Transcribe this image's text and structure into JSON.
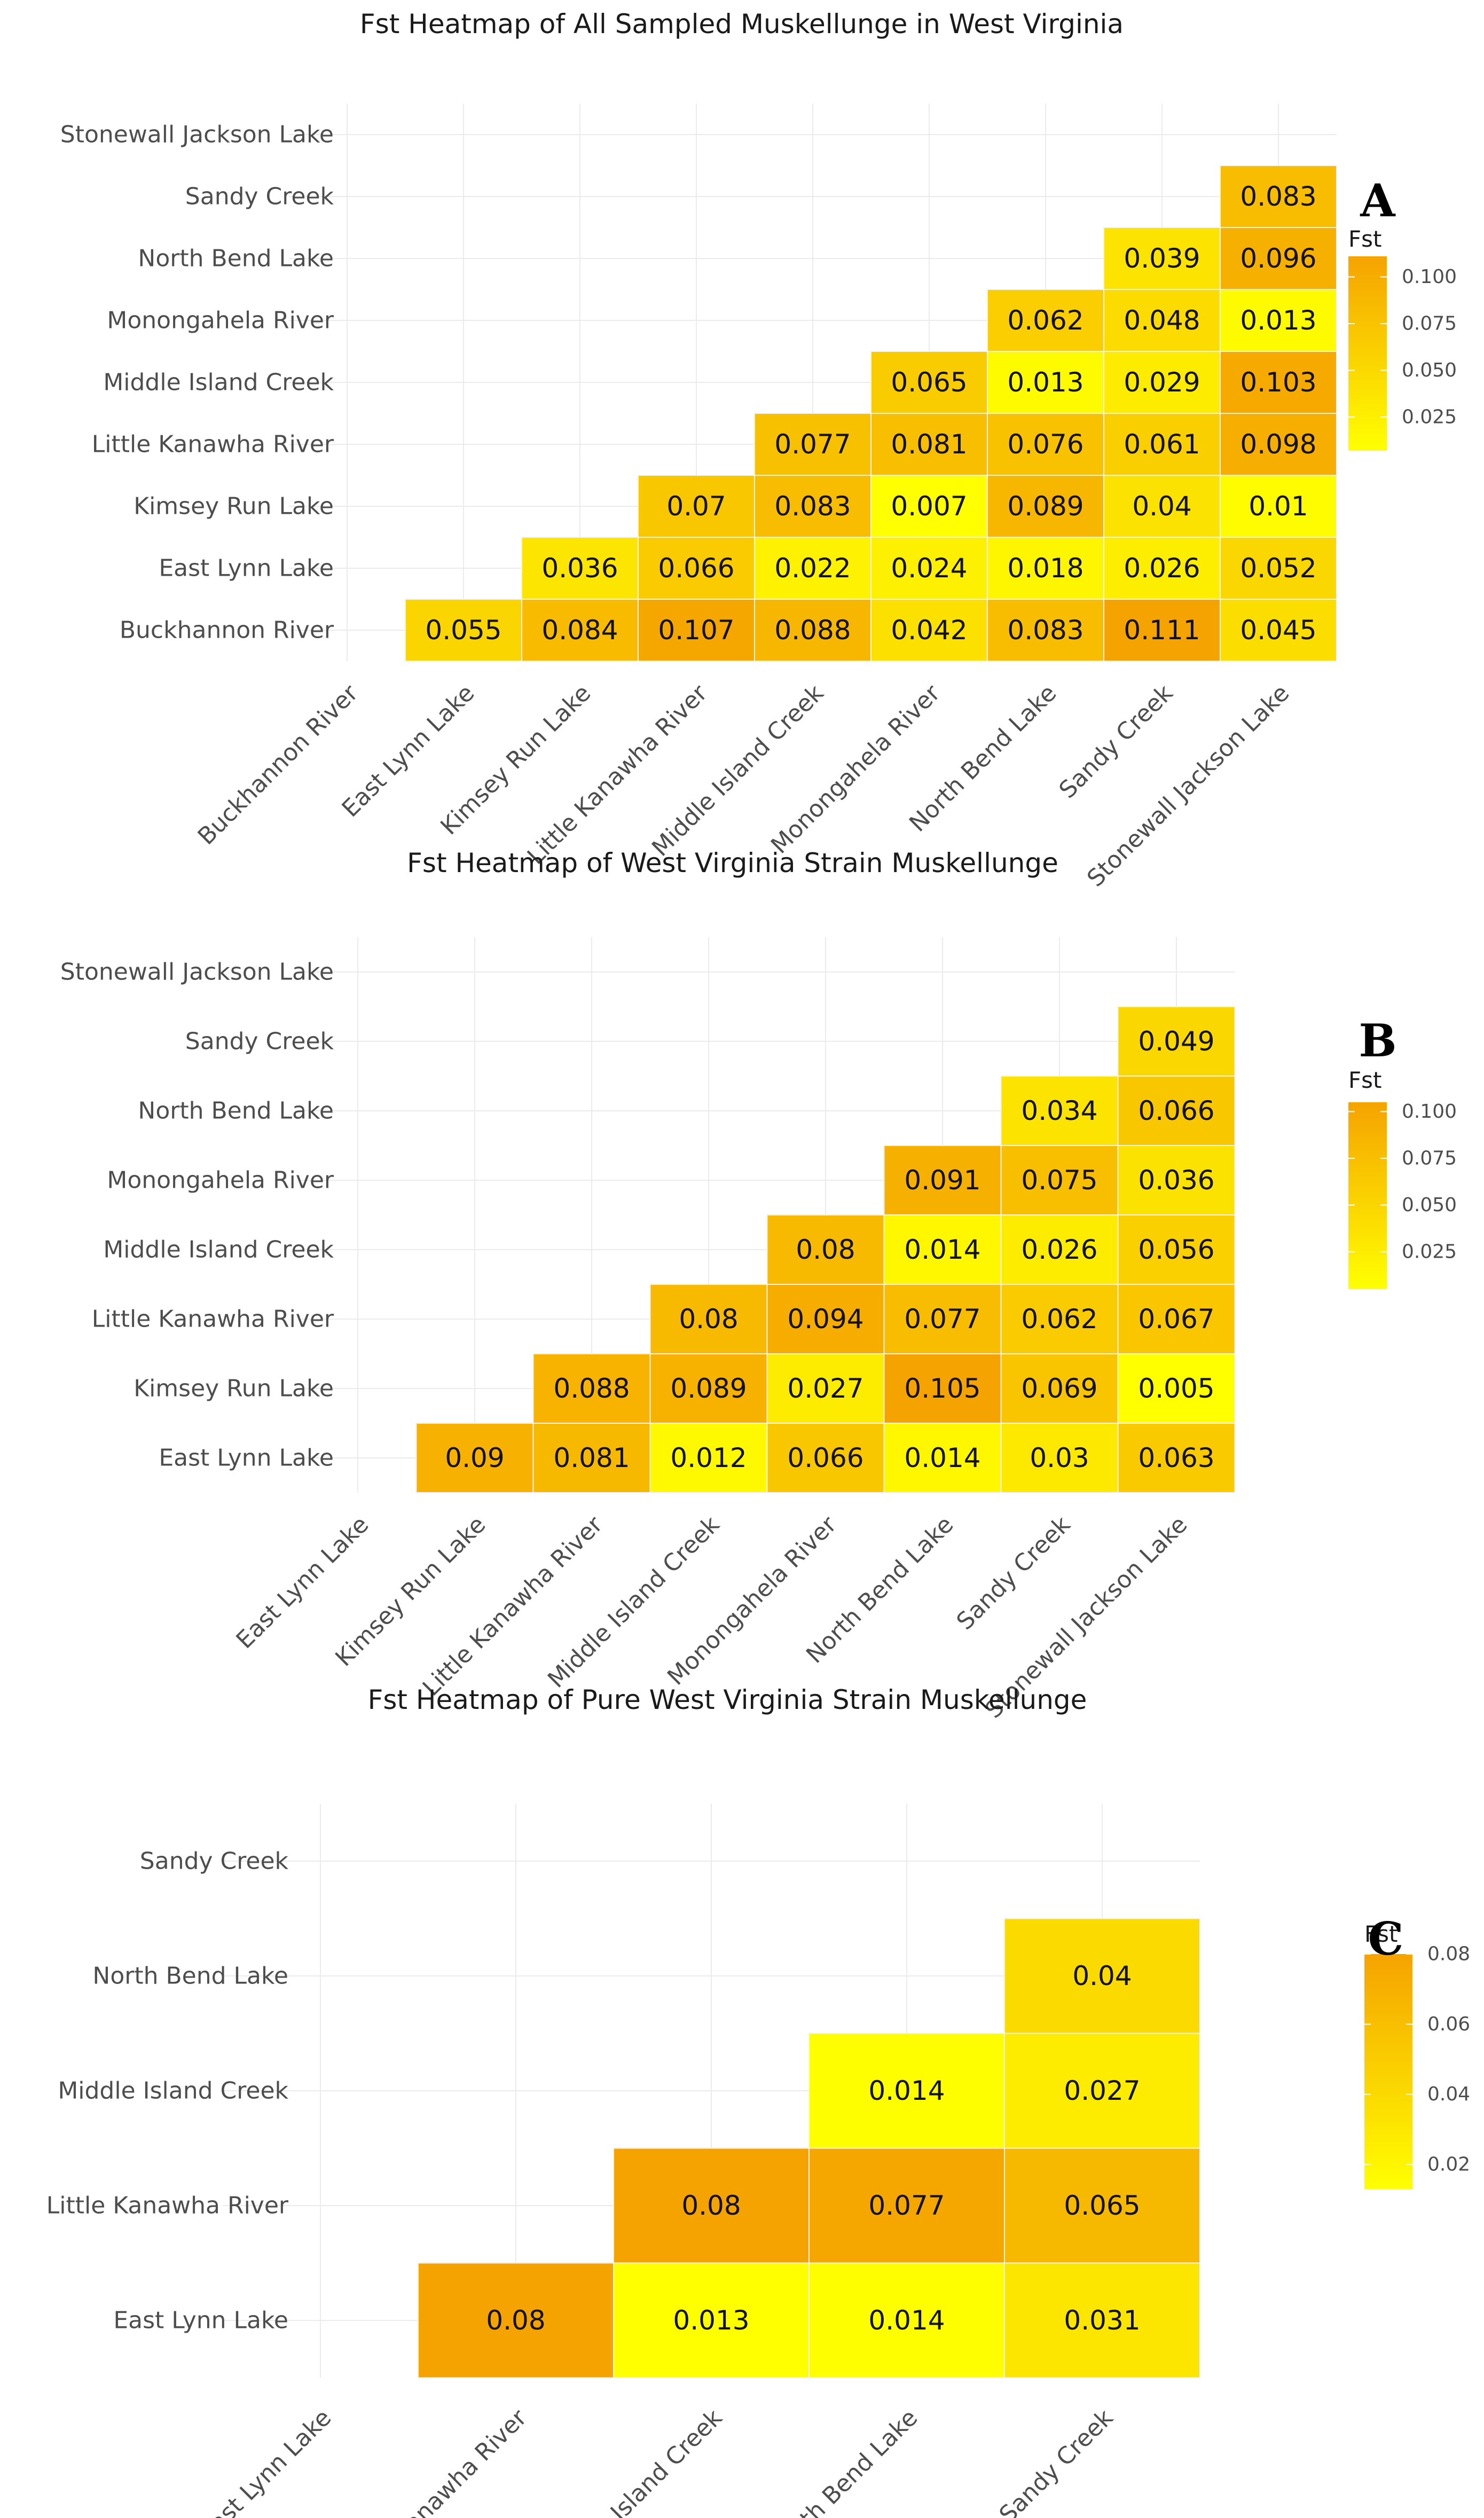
{
  "colors": {
    "low": "#ffff00",
    "high": "#f5a300",
    "grid": "#ebebeb",
    "cell_border": "#f2f2f2"
  },
  "chart_data": [
    {
      "type": "heatmap",
      "panel": "A",
      "title": "Fst Heatmap of All Sampled Muskellunge in West Virginia",
      "legend_title": "Fst",
      "legend_ticks": [
        "0.100",
        "0.075",
        "0.050",
        "0.025"
      ],
      "legend_tick_values": [
        0.1,
        0.075,
        0.05,
        0.025
      ],
      "value_range": [
        0.007,
        0.111
      ],
      "x_categories": [
        "Buckhannon River",
        "East Lynn Lake",
        "Kimsey Run Lake",
        "Little Kanawha River",
        "Middle Island Creek",
        "Monongahela River",
        "North Bend Lake",
        "Sandy Creek",
        "Stonewall Jackson Lake"
      ],
      "y_categories": [
        "Buckhannon River",
        "East Lynn Lake",
        "Kimsey Run Lake",
        "Little Kanawha River",
        "Middle Island Creek",
        "Monongahela River",
        "North Bend Lake",
        "Sandy Creek",
        "Stonewall Jackson Lake"
      ],
      "cells": [
        {
          "x": 1,
          "y": 0,
          "label": "0.055",
          "value": 0.055
        },
        {
          "x": 2,
          "y": 0,
          "label": "0.084",
          "value": 0.084
        },
        {
          "x": 3,
          "y": 0,
          "label": "0.107",
          "value": 0.107
        },
        {
          "x": 4,
          "y": 0,
          "label": "0.088",
          "value": 0.088
        },
        {
          "x": 5,
          "y": 0,
          "label": "0.042",
          "value": 0.042
        },
        {
          "x": 6,
          "y": 0,
          "label": "0.083",
          "value": 0.083
        },
        {
          "x": 7,
          "y": 0,
          "label": "0.111",
          "value": 0.111
        },
        {
          "x": 8,
          "y": 0,
          "label": "0.045",
          "value": 0.045
        },
        {
          "x": 2,
          "y": 1,
          "label": "0.036",
          "value": 0.036
        },
        {
          "x": 3,
          "y": 1,
          "label": "0.066",
          "value": 0.066
        },
        {
          "x": 4,
          "y": 1,
          "label": "0.022",
          "value": 0.022
        },
        {
          "x": 5,
          "y": 1,
          "label": "0.024",
          "value": 0.024
        },
        {
          "x": 6,
          "y": 1,
          "label": "0.018",
          "value": 0.018
        },
        {
          "x": 7,
          "y": 1,
          "label": "0.026",
          "value": 0.026
        },
        {
          "x": 8,
          "y": 1,
          "label": "0.052",
          "value": 0.052
        },
        {
          "x": 3,
          "y": 2,
          "label": "0.07",
          "value": 0.07
        },
        {
          "x": 4,
          "y": 2,
          "label": "0.083",
          "value": 0.083
        },
        {
          "x": 5,
          "y": 2,
          "label": "0.007",
          "value": 0.007
        },
        {
          "x": 6,
          "y": 2,
          "label": "0.089",
          "value": 0.089
        },
        {
          "x": 7,
          "y": 2,
          "label": "0.04",
          "value": 0.04
        },
        {
          "x": 8,
          "y": 2,
          "label": "0.01",
          "value": 0.01
        },
        {
          "x": 4,
          "y": 3,
          "label": "0.077",
          "value": 0.077
        },
        {
          "x": 5,
          "y": 3,
          "label": "0.081",
          "value": 0.081
        },
        {
          "x": 6,
          "y": 3,
          "label": "0.076",
          "value": 0.076
        },
        {
          "x": 7,
          "y": 3,
          "label": "0.061",
          "value": 0.061
        },
        {
          "x": 8,
          "y": 3,
          "label": "0.098",
          "value": 0.098
        },
        {
          "x": 5,
          "y": 4,
          "label": "0.065",
          "value": 0.065
        },
        {
          "x": 6,
          "y": 4,
          "label": "0.013",
          "value": 0.013
        },
        {
          "x": 7,
          "y": 4,
          "label": "0.029",
          "value": 0.029
        },
        {
          "x": 8,
          "y": 4,
          "label": "0.103",
          "value": 0.103
        },
        {
          "x": 6,
          "y": 5,
          "label": "0.062",
          "value": 0.062
        },
        {
          "x": 7,
          "y": 5,
          "label": "0.048",
          "value": 0.048
        },
        {
          "x": 8,
          "y": 5,
          "label": "0.013",
          "value": 0.013
        },
        {
          "x": 7,
          "y": 6,
          "label": "0.039",
          "value": 0.039
        },
        {
          "x": 8,
          "y": 6,
          "label": "0.096",
          "value": 0.096
        },
        {
          "x": 8,
          "y": 7,
          "label": "0.083",
          "value": 0.083
        }
      ]
    },
    {
      "type": "heatmap",
      "panel": "B",
      "title": "Fst Heatmap of West Virginia Strain Muskellunge",
      "legend_title": "Fst",
      "legend_ticks": [
        "0.100",
        "0.075",
        "0.050",
        "0.025"
      ],
      "legend_tick_values": [
        0.1,
        0.075,
        0.05,
        0.025
      ],
      "value_range": [
        0.005,
        0.105
      ],
      "x_categories": [
        "East Lynn Lake",
        "Kimsey Run Lake",
        "Little Kanawha River",
        "Middle Island Creek",
        "Monongahela River",
        "North Bend Lake",
        "Sandy Creek",
        "Stonewall Jackson Lake"
      ],
      "y_categories": [
        "East Lynn Lake",
        "Kimsey Run Lake",
        "Little Kanawha River",
        "Middle Island Creek",
        "Monongahela River",
        "North Bend Lake",
        "Sandy Creek",
        "Stonewall Jackson Lake"
      ],
      "cells": [
        {
          "x": 1,
          "y": 0,
          "label": "0.09",
          "value": 0.09
        },
        {
          "x": 2,
          "y": 0,
          "label": "0.081",
          "value": 0.081
        },
        {
          "x": 3,
          "y": 0,
          "label": "0.012",
          "value": 0.012
        },
        {
          "x": 4,
          "y": 0,
          "label": "0.066",
          "value": 0.066
        },
        {
          "x": 5,
          "y": 0,
          "label": "0.014",
          "value": 0.014
        },
        {
          "x": 6,
          "y": 0,
          "label": "0.03",
          "value": 0.03
        },
        {
          "x": 7,
          "y": 0,
          "label": "0.063",
          "value": 0.063
        },
        {
          "x": 2,
          "y": 1,
          "label": "0.088",
          "value": 0.088
        },
        {
          "x": 3,
          "y": 1,
          "label": "0.089",
          "value": 0.089
        },
        {
          "x": 4,
          "y": 1,
          "label": "0.027",
          "value": 0.027
        },
        {
          "x": 5,
          "y": 1,
          "label": "0.105",
          "value": 0.105
        },
        {
          "x": 6,
          "y": 1,
          "label": "0.069",
          "value": 0.069
        },
        {
          "x": 7,
          "y": 1,
          "label": "0.005",
          "value": 0.005
        },
        {
          "x": 3,
          "y": 2,
          "label": "0.08",
          "value": 0.08
        },
        {
          "x": 4,
          "y": 2,
          "label": "0.094",
          "value": 0.094
        },
        {
          "x": 5,
          "y": 2,
          "label": "0.077",
          "value": 0.077
        },
        {
          "x": 6,
          "y": 2,
          "label": "0.062",
          "value": 0.062
        },
        {
          "x": 7,
          "y": 2,
          "label": "0.067",
          "value": 0.067
        },
        {
          "x": 4,
          "y": 3,
          "label": "0.08",
          "value": 0.08
        },
        {
          "x": 5,
          "y": 3,
          "label": "0.014",
          "value": 0.014
        },
        {
          "x": 6,
          "y": 3,
          "label": "0.026",
          "value": 0.026
        },
        {
          "x": 7,
          "y": 3,
          "label": "0.056",
          "value": 0.056
        },
        {
          "x": 5,
          "y": 4,
          "label": "0.091",
          "value": 0.091
        },
        {
          "x": 6,
          "y": 4,
          "label": "0.075",
          "value": 0.075
        },
        {
          "x": 7,
          "y": 4,
          "label": "0.036",
          "value": 0.036
        },
        {
          "x": 6,
          "y": 5,
          "label": "0.034",
          "value": 0.034
        },
        {
          "x": 7,
          "y": 5,
          "label": "0.066",
          "value": 0.066
        },
        {
          "x": 7,
          "y": 6,
          "label": "0.049",
          "value": 0.049
        }
      ]
    },
    {
      "type": "heatmap",
      "panel": "C",
      "title": "Fst Heatmap of Pure West Virginia Strain Muskellunge",
      "legend_title": "Fst",
      "legend_ticks": [
        "0.08",
        "0.06",
        "0.04",
        "0.02"
      ],
      "legend_tick_values": [
        0.08,
        0.06,
        0.04,
        0.02
      ],
      "value_range": [
        0.013,
        0.08
      ],
      "x_categories": [
        "East Lynn Lake",
        "Little Kanawha River",
        "Middle Island Creek",
        "North Bend Lake",
        "Sandy Creek"
      ],
      "y_categories": [
        "East Lynn Lake",
        "Little Kanawha River",
        "Middle Island Creek",
        "North Bend Lake",
        "Sandy Creek"
      ],
      "cells": [
        {
          "x": 1,
          "y": 0,
          "label": "0.08",
          "value": 0.08
        },
        {
          "x": 2,
          "y": 0,
          "label": "0.013",
          "value": 0.013
        },
        {
          "x": 3,
          "y": 0,
          "label": "0.014",
          "value": 0.014
        },
        {
          "x": 4,
          "y": 0,
          "label": "0.031",
          "value": 0.031
        },
        {
          "x": 2,
          "y": 1,
          "label": "0.08",
          "value": 0.08
        },
        {
          "x": 3,
          "y": 1,
          "label": "0.077",
          "value": 0.077
        },
        {
          "x": 4,
          "y": 1,
          "label": "0.065",
          "value": 0.065
        },
        {
          "x": 3,
          "y": 2,
          "label": "0.014",
          "value": 0.014
        },
        {
          "x": 4,
          "y": 2,
          "label": "0.027",
          "value": 0.027
        },
        {
          "x": 4,
          "y": 3,
          "label": "0.04",
          "value": 0.04
        }
      ]
    }
  ]
}
